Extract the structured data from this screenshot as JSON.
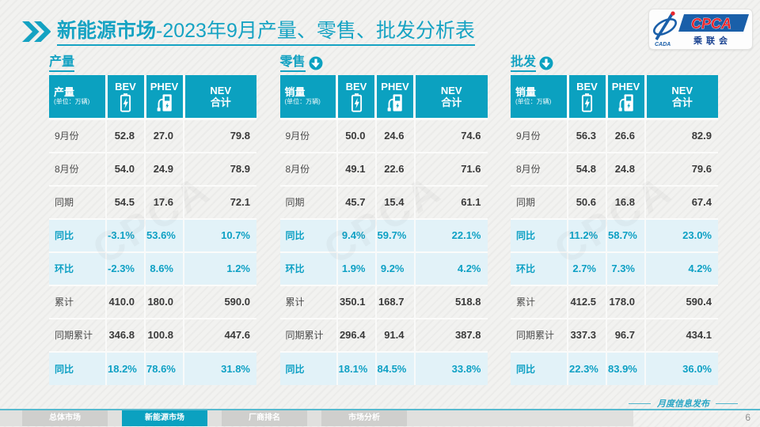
{
  "title": {
    "highlight": "新能源市场",
    "rest": "-2023年9月产量、零售、批发分析表"
  },
  "logo": {
    "brand": "CPCA",
    "brand_sub": "乘联会",
    "swoosh_text": "CADA"
  },
  "watermark": "CPCA",
  "columns": {
    "bev": "BEV",
    "phev": "PHEV",
    "nev_line1": "NEV",
    "nev_line2": "合计"
  },
  "colors": {
    "teal": "#0ba1c0",
    "highlight_row_bg": "#e2f2f8",
    "logo_blue": "#1a5fa9",
    "logo_red": "#e8262d"
  },
  "tables": [
    {
      "section_title": "产量",
      "has_down_arrow": false,
      "header_label": "产量",
      "header_unit": "(单位：万辆)",
      "rows": [
        {
          "label": "9月份",
          "values": [
            "52.8",
            "27.0",
            "79.8"
          ],
          "highlight": false
        },
        {
          "label": "8月份",
          "values": [
            "54.0",
            "24.9",
            "78.9"
          ],
          "highlight": false
        },
        {
          "label": "同期",
          "values": [
            "54.5",
            "17.6",
            "72.1"
          ],
          "highlight": false
        },
        {
          "label": "同比",
          "values": [
            "-3.1%",
            "53.6%",
            "10.7%"
          ],
          "highlight": true
        },
        {
          "label": "环比",
          "values": [
            "-2.3%",
            "8.6%",
            "1.2%"
          ],
          "highlight": true
        },
        {
          "label": "累计",
          "values": [
            "410.0",
            "180.0",
            "590.0"
          ],
          "highlight": false
        },
        {
          "label": "同期累计",
          "values": [
            "346.8",
            "100.8",
            "447.6"
          ],
          "highlight": false
        },
        {
          "label": "同比",
          "values": [
            "18.2%",
            "78.6%",
            "31.8%"
          ],
          "highlight": true
        }
      ]
    },
    {
      "section_title": "零售",
      "has_down_arrow": true,
      "header_label": "销量",
      "header_unit": "(单位：万辆)",
      "rows": [
        {
          "label": "9月份",
          "values": [
            "50.0",
            "24.6",
            "74.6"
          ],
          "highlight": false
        },
        {
          "label": "8月份",
          "values": [
            "49.1",
            "22.6",
            "71.6"
          ],
          "highlight": false
        },
        {
          "label": "同期",
          "values": [
            "45.7",
            "15.4",
            "61.1"
          ],
          "highlight": false
        },
        {
          "label": "同比",
          "values": [
            "9.4%",
            "59.7%",
            "22.1%"
          ],
          "highlight": true
        },
        {
          "label": "环比",
          "values": [
            "1.9%",
            "9.2%",
            "4.2%"
          ],
          "highlight": true
        },
        {
          "label": "累计",
          "values": [
            "350.1",
            "168.7",
            "518.8"
          ],
          "highlight": false
        },
        {
          "label": "同期累计",
          "values": [
            "296.4",
            "91.4",
            "387.8"
          ],
          "highlight": false
        },
        {
          "label": "同比",
          "values": [
            "18.1%",
            "84.5%",
            "33.8%"
          ],
          "highlight": true
        }
      ]
    },
    {
      "section_title": "批发",
      "has_down_arrow": true,
      "header_label": "销量",
      "header_unit": "(单位：万辆)",
      "rows": [
        {
          "label": "9月份",
          "values": [
            "56.3",
            "26.6",
            "82.9"
          ],
          "highlight": false
        },
        {
          "label": "8月份",
          "values": [
            "54.8",
            "24.8",
            "79.6"
          ],
          "highlight": false
        },
        {
          "label": "同期",
          "values": [
            "50.6",
            "16.8",
            "67.4"
          ],
          "highlight": false
        },
        {
          "label": "同比",
          "values": [
            "11.2%",
            "58.7%",
            "23.0%"
          ],
          "highlight": true
        },
        {
          "label": "环比",
          "values": [
            "2.7%",
            "7.3%",
            "4.2%"
          ],
          "highlight": true
        },
        {
          "label": "累计",
          "values": [
            "412.5",
            "178.0",
            "590.4"
          ],
          "highlight": false
        },
        {
          "label": "同期累计",
          "values": [
            "337.3",
            "96.7",
            "434.1"
          ],
          "highlight": false
        },
        {
          "label": "同比",
          "values": [
            "22.3%",
            "83.9%",
            "36.0%"
          ],
          "highlight": true
        }
      ]
    }
  ],
  "footer": {
    "tabs": [
      {
        "label": "总体市场",
        "active": false
      },
      {
        "label": "新能源市场",
        "active": true
      },
      {
        "label": "厂商排名",
        "active": false
      },
      {
        "label": "市场分析",
        "active": false
      }
    ],
    "publish_label": "月度信息发布",
    "page_number": "6"
  }
}
